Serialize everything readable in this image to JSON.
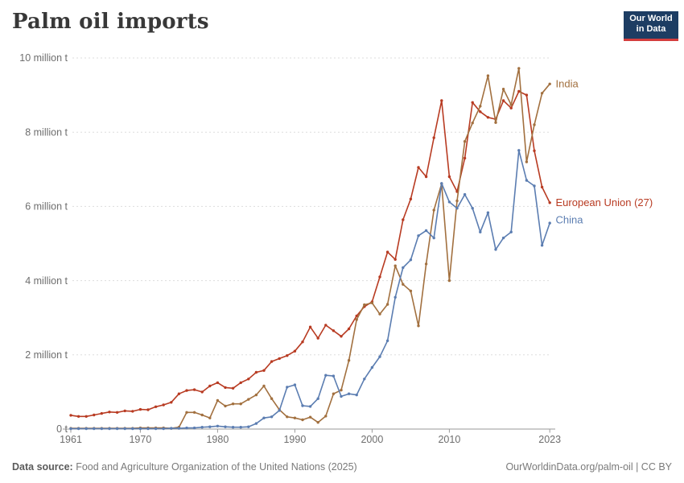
{
  "header": {
    "title": "Palm oil imports",
    "logo": {
      "line1": "Our World",
      "line2": "in Data"
    }
  },
  "footer": {
    "source_label": "Data source:",
    "source_text": " Food and Agriculture Organization of the United Nations (2025)",
    "credit": "OurWorldinData.org/palm-oil | CC BY"
  },
  "colors": {
    "india": "#A2703F",
    "european_union": "#B83B22",
    "china": "#5B7DB1",
    "grid": "#DDDDDD",
    "axis": "#999999",
    "tick_text": "#6E6E6E",
    "logo_bg": "#1D3D63",
    "logo_stripe": "#D43D3D"
  },
  "chart_data": {
    "type": "line",
    "title": "Palm oil imports",
    "xlabel": "",
    "ylabel": "million tonnes",
    "ylim": [
      0,
      10
    ],
    "grid": "horizontal dashed",
    "legend": "end-of-line labels",
    "xticks": [
      1961,
      1970,
      1980,
      1990,
      2000,
      2010,
      2023
    ],
    "yticks": [
      {
        "value": 0,
        "label": "0 t"
      },
      {
        "value": 2,
        "label": "2 million t"
      },
      {
        "value": 4,
        "label": "4 million t"
      },
      {
        "value": 6,
        "label": "6 million t"
      },
      {
        "value": 8,
        "label": "8 million t"
      },
      {
        "value": 10,
        "label": "10 million t"
      }
    ],
    "x": [
      1961,
      1962,
      1963,
      1964,
      1965,
      1966,
      1967,
      1968,
      1969,
      1970,
      1971,
      1972,
      1973,
      1974,
      1975,
      1976,
      1977,
      1978,
      1979,
      1980,
      1981,
      1982,
      1983,
      1984,
      1985,
      1986,
      1987,
      1988,
      1989,
      1990,
      1991,
      1992,
      1993,
      1994,
      1995,
      1996,
      1997,
      1998,
      1999,
      2000,
      2001,
      2002,
      2003,
      2004,
      2005,
      2006,
      2007,
      2008,
      2009,
      2010,
      2011,
      2012,
      2013,
      2014,
      2015,
      2016,
      2017,
      2018,
      2019,
      2020,
      2021,
      2022,
      2023
    ],
    "series": [
      {
        "name": "European Union (27)",
        "color": "#B83B22",
        "label_dy": 0,
        "values": [
          0.37,
          0.34,
          0.34,
          0.38,
          0.42,
          0.46,
          0.45,
          0.49,
          0.48,
          0.53,
          0.52,
          0.6,
          0.65,
          0.72,
          0.95,
          1.04,
          1.06,
          1.0,
          1.16,
          1.25,
          1.12,
          1.1,
          1.25,
          1.35,
          1.53,
          1.58,
          1.82,
          1.9,
          1.98,
          2.1,
          2.35,
          2.75,
          2.45,
          2.8,
          2.65,
          2.5,
          2.7,
          3.05,
          3.3,
          3.43,
          4.1,
          4.77,
          4.57,
          5.64,
          6.2,
          7.05,
          6.8,
          7.85,
          8.85,
          6.8,
          6.4,
          7.3,
          8.8,
          8.55,
          8.4,
          8.35,
          8.85,
          8.65,
          9.1,
          9.0,
          7.5,
          6.52,
          6.1
        ]
      },
      {
        "name": "India",
        "color": "#A2703F",
        "label_dy": 0,
        "values": [
          0.02,
          0.02,
          0.02,
          0.02,
          0.02,
          0.02,
          0.02,
          0.02,
          0.02,
          0.03,
          0.03,
          0.03,
          0.03,
          0.02,
          0.05,
          0.45,
          0.45,
          0.38,
          0.3,
          0.77,
          0.62,
          0.68,
          0.68,
          0.8,
          0.92,
          1.16,
          0.82,
          0.52,
          0.33,
          0.3,
          0.25,
          0.32,
          0.18,
          0.35,
          0.95,
          1.05,
          1.85,
          2.95,
          3.35,
          3.4,
          3.1,
          3.36,
          4.4,
          3.9,
          3.72,
          2.78,
          4.45,
          5.9,
          6.61,
          4.0,
          6.15,
          7.75,
          8.25,
          8.7,
          9.52,
          8.26,
          9.16,
          8.74,
          9.72,
          7.2,
          8.2,
          9.05,
          9.3
        ]
      },
      {
        "name": "China",
        "color": "#5B7DB1",
        "label_dy": -4,
        "values": [
          0.01,
          0.01,
          0.01,
          0.01,
          0.01,
          0.01,
          0.01,
          0.01,
          0.01,
          0.01,
          0.01,
          0.01,
          0.01,
          0.02,
          0.02,
          0.03,
          0.03,
          0.05,
          0.06,
          0.08,
          0.06,
          0.05,
          0.05,
          0.06,
          0.15,
          0.3,
          0.33,
          0.5,
          1.13,
          1.19,
          0.63,
          0.61,
          0.82,
          1.45,
          1.43,
          0.88,
          0.95,
          0.92,
          1.35,
          1.66,
          1.95,
          2.38,
          3.55,
          4.35,
          4.56,
          5.21,
          5.35,
          5.15,
          6.62,
          6.12,
          5.95,
          6.32,
          5.95,
          5.31,
          5.83,
          4.84,
          5.15,
          5.31,
          7.51,
          6.7,
          6.55,
          4.95,
          5.55
        ]
      }
    ]
  }
}
